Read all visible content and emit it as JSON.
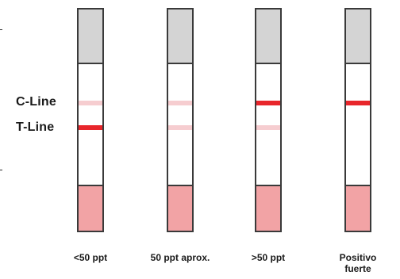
{
  "labels": {
    "c_line": "C-Line",
    "t_line": "T-Line"
  },
  "strips": [
    {
      "caption_line1": "<50 ppt",
      "caption_line2": "",
      "c_line": "faint",
      "t_line": "strong"
    },
    {
      "caption_line1": "50 ppt aprox.",
      "caption_line2": "",
      "c_line": "faint",
      "t_line": "faint"
    },
    {
      "caption_line1": ">50 ppt",
      "caption_line2": "",
      "c_line": "strong",
      "t_line": "faint"
    },
    {
      "caption_line1": "Positivo",
      "caption_line2": "fuerte",
      "c_line": "strong",
      "t_line": "none"
    }
  ],
  "colors": {
    "strong_line": "#e8262b",
    "faint_line": "#f6cdd0",
    "sample_pad": "#f2a3a5",
    "cap": "#d4d4d4",
    "border": "#3a3a3a"
  }
}
